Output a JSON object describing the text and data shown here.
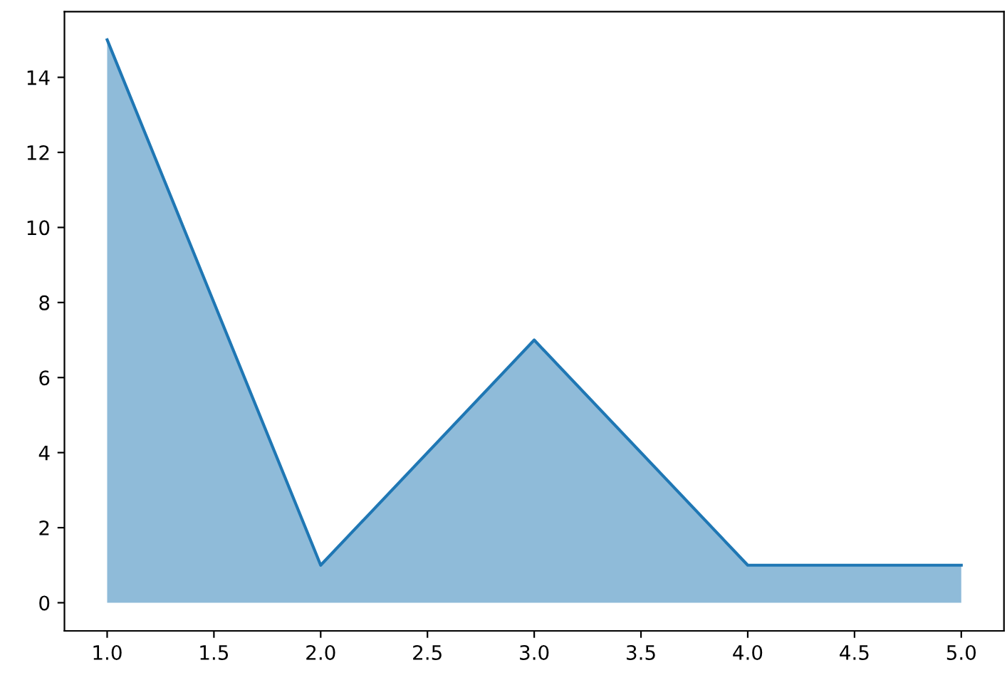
{
  "chart_data": {
    "type": "area",
    "x": [
      1,
      2,
      3,
      4,
      5
    ],
    "series": [
      {
        "color": "#1f77b4",
        "values": [
          15,
          1,
          7,
          1,
          1
        ]
      }
    ],
    "xlim": [
      0.8,
      5.2
    ],
    "ylim": [
      -0.75,
      15.75
    ],
    "xticks": [
      {
        "value": 1,
        "label": "1.0"
      },
      {
        "value": 1.5,
        "label": "1.5"
      },
      {
        "value": 2,
        "label": "2.0"
      },
      {
        "value": 2.5,
        "label": "2.5"
      },
      {
        "value": 3,
        "label": "3.0"
      },
      {
        "value": 3.5,
        "label": "3.5"
      },
      {
        "value": 4,
        "label": "4.0"
      },
      {
        "value": 4.5,
        "label": "4.5"
      },
      {
        "value": 5,
        "label": "5.0"
      }
    ],
    "yticks": [
      0,
      2,
      4,
      6,
      8,
      10,
      12,
      14
    ]
  }
}
